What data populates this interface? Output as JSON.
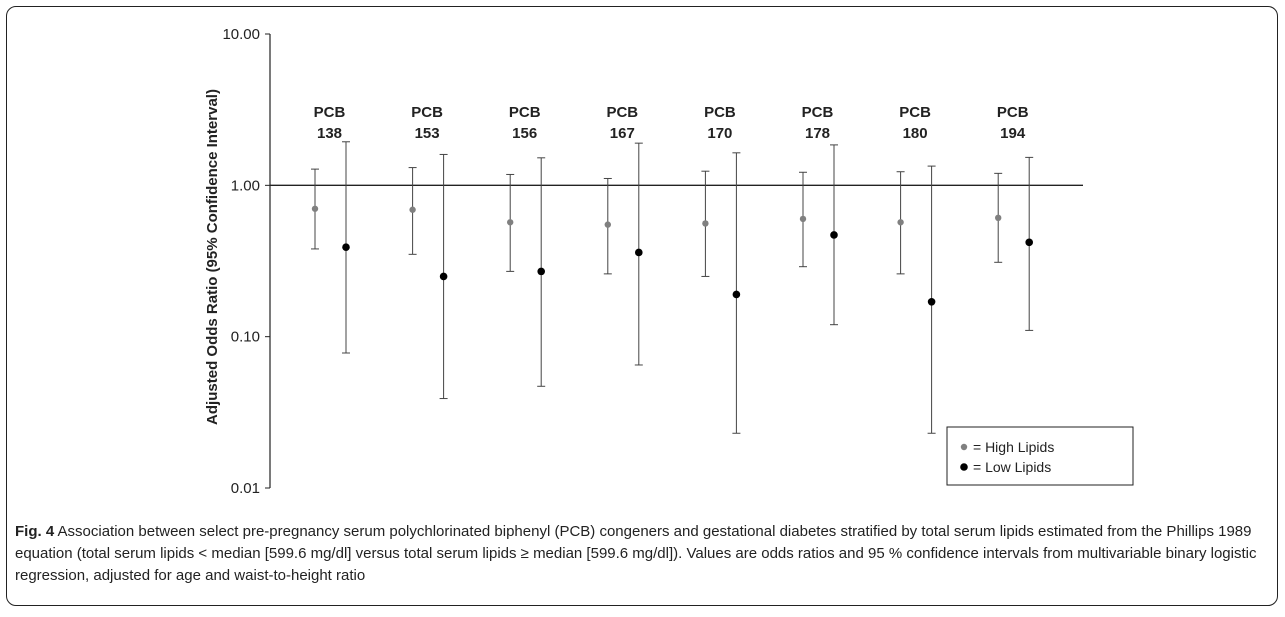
{
  "chart_data": {
    "type": "scatter",
    "ylabel": "Adjusted Odds Ratio (95% Confidence Interval)",
    "yscale": "log",
    "ylim": [
      0.01,
      10
    ],
    "yticks": [
      "0.01",
      "0.10",
      "1.00",
      "10.00"
    ],
    "ytick_values": [
      0.01,
      0.1,
      1,
      10
    ],
    "reference_line": 1.0,
    "groups": [
      {
        "line1": "PCB",
        "line2": "138"
      },
      {
        "line1": "PCB",
        "line2": "153"
      },
      {
        "line1": "PCB",
        "line2": "156"
      },
      {
        "line1": "PCB",
        "line2": "167"
      },
      {
        "line1": "PCB",
        "line2": "170"
      },
      {
        "line1": "PCB",
        "line2": "178"
      },
      {
        "line1": "PCB",
        "line2": "180"
      },
      {
        "line1": "PCB",
        "line2": "194"
      }
    ],
    "series": [
      {
        "name": "= High Lipids",
        "color": "#808080",
        "or": [
          0.7,
          0.69,
          0.57,
          0.55,
          0.56,
          0.6,
          0.57,
          0.61
        ],
        "lower": [
          0.38,
          0.35,
          0.27,
          0.26,
          0.25,
          0.29,
          0.26,
          0.31
        ],
        "upper": [
          1.28,
          1.31,
          1.18,
          1.11,
          1.24,
          1.22,
          1.23,
          1.2
        ]
      },
      {
        "name": "= Low Lipids",
        "color": "#000000",
        "or": [
          0.39,
          0.25,
          0.27,
          0.36,
          0.19,
          0.47,
          0.17,
          0.42
        ],
        "lower": [
          0.078,
          0.039,
          0.047,
          0.065,
          0.023,
          0.12,
          0.023,
          0.11
        ],
        "upper": [
          1.94,
          1.6,
          1.52,
          1.9,
          1.64,
          1.85,
          1.34,
          1.53
        ]
      }
    ],
    "legend_position": "bottom-right"
  },
  "caption": {
    "label": "Fig. 4",
    "text": " Association between select pre-pregnancy serum polychlorinated biphenyl (PCB) congeners and gestational diabetes stratified by total serum lipids estimated from the Phillips 1989 equation (total serum lipids < median [599.6 mg/dl] versus total serum lipids ≥ median [599.6 mg/dl]). Values are odds ratios and 95 % confidence intervals from multivariable binary logistic regression, adjusted for age and waist-to-height ratio"
  }
}
